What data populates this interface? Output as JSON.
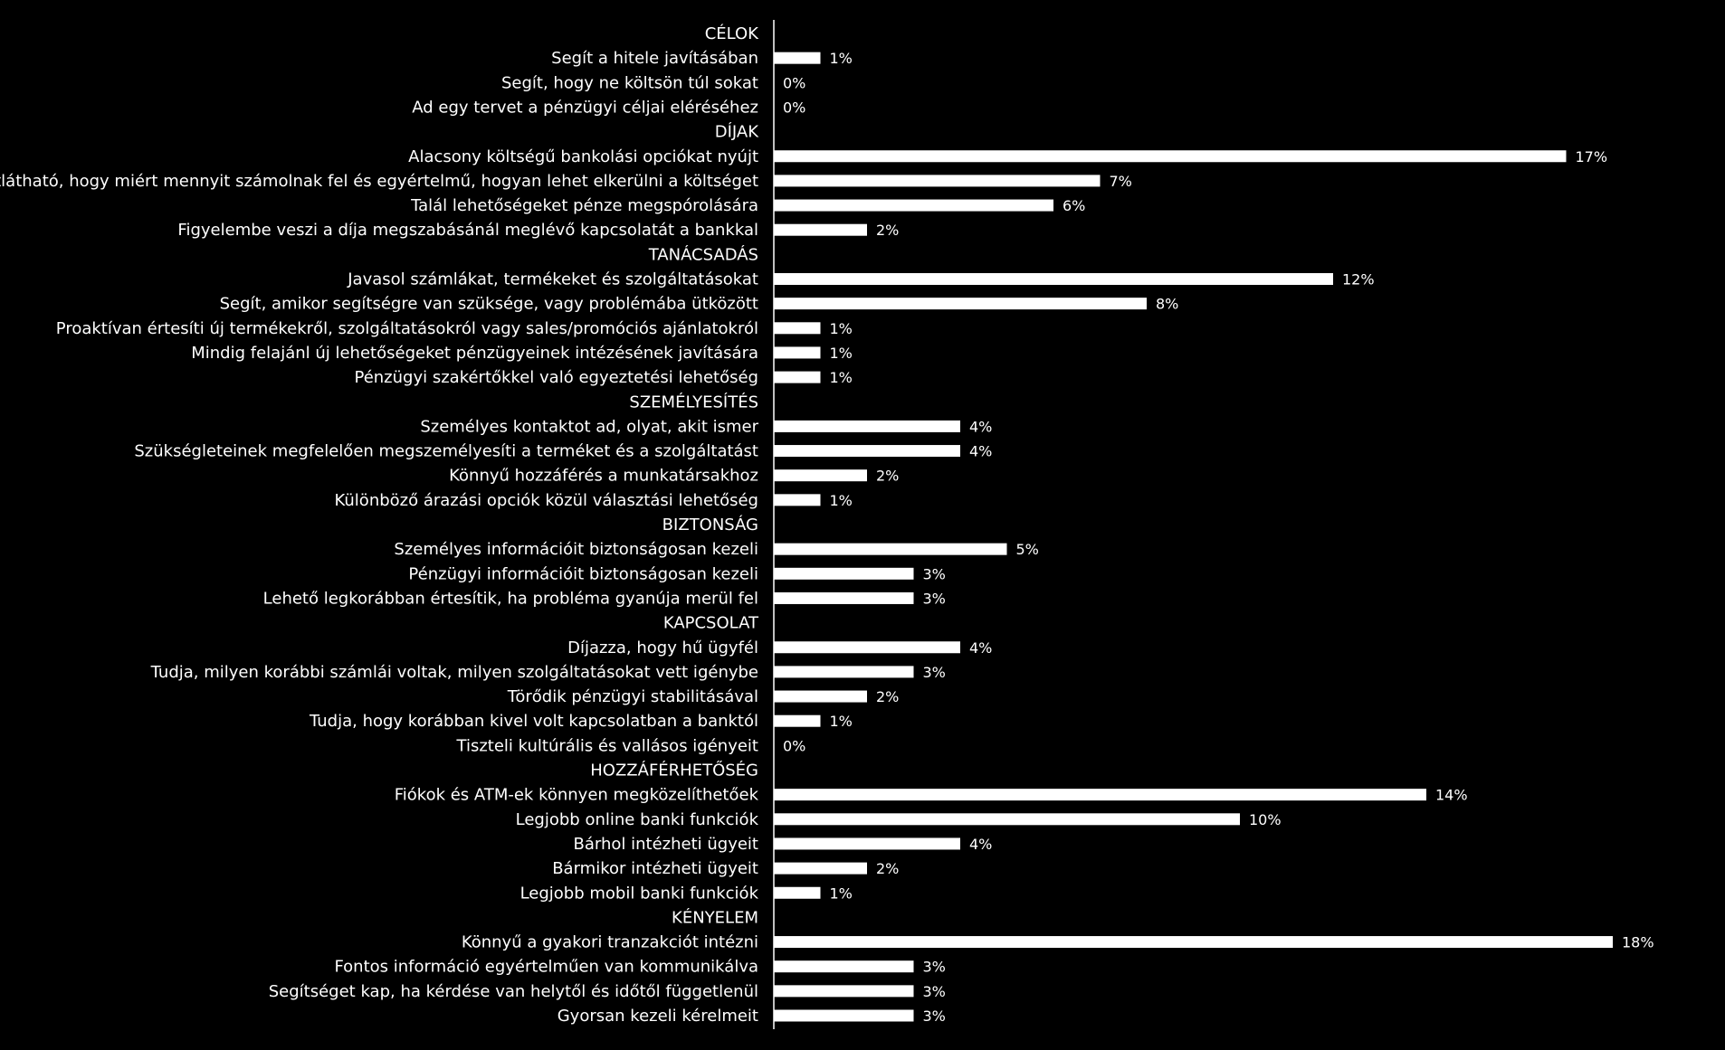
{
  "chart_data": {
    "type": "bar",
    "orientation": "horizontal",
    "title": "",
    "xlabel": "",
    "ylabel": "",
    "xlim": [
      0,
      18
    ],
    "grid": false,
    "value_suffix": "%",
    "colors": {
      "background": "#000000",
      "bar": "#ffffff",
      "text": "#ffffff",
      "axis": "#ffffff"
    },
    "rows": [
      {
        "label": "CÉLOK",
        "header": true
      },
      {
        "label": "Segít a hitele javításában",
        "value": 1,
        "display": "1%"
      },
      {
        "label": "Segít, hogy ne költsön túl sokat",
        "value": 0,
        "display": "0%"
      },
      {
        "label": "Ad egy tervet a pénzügyi céljai eléréséhez",
        "value": 0,
        "display": "0%"
      },
      {
        "label": "DÍJAK",
        "header": true
      },
      {
        "label": "Alacsony költségű bankolási opciókat nyújt",
        "value": 17,
        "display": "17%"
      },
      {
        "label": "Átlátható, hogy miért mennyit számolnak fel és egyértelmű, hogyan lehet elkerülni a költséget",
        "value": 7,
        "display": "7%"
      },
      {
        "label": "Talál lehetőségeket pénze megspórolására",
        "value": 6,
        "display": "6%"
      },
      {
        "label": "Figyelembe veszi a díja megszabásánál meglévő kapcsolatát a bankkal",
        "value": 2,
        "display": "2%"
      },
      {
        "label": "TANÁCSADÁS",
        "header": true
      },
      {
        "label": "Javasol számlákat, termékeket és szolgáltatásokat",
        "value": 12,
        "display": "12%"
      },
      {
        "label": "Segít, amikor segítségre van szüksége, vagy problémába ütközött",
        "value": 8,
        "display": "8%"
      },
      {
        "label": "Proaktívan értesíti új termékekről, szolgáltatásokról vagy sales/promóciós ajánlatokról",
        "value": 1,
        "display": "1%"
      },
      {
        "label": "Mindig felajánl új lehetőségeket pénzügyeinek intézésének javítására",
        "value": 1,
        "display": "1%"
      },
      {
        "label": "Pénzügyi szakértőkkel való egyeztetési lehetőség",
        "value": 1,
        "display": "1%"
      },
      {
        "label": "SZEMÉLYESÍTÉS",
        "header": true
      },
      {
        "label": "Személyes kontaktot ad, olyat, akit ismer",
        "value": 4,
        "display": "4%"
      },
      {
        "label": "Szükségleteinek megfelelően megszemélyesíti a terméket és a szolgáltatást",
        "value": 4,
        "display": "4%"
      },
      {
        "label": "Könnyű hozzáférés a munkatársakhoz",
        "value": 2,
        "display": "2%"
      },
      {
        "label": "Különböző árazási opciók közül választási lehetőség",
        "value": 1,
        "display": "1%"
      },
      {
        "label": "BIZTONSÁG",
        "header": true
      },
      {
        "label": "Személyes információit biztonságosan kezeli",
        "value": 5,
        "display": "5%"
      },
      {
        "label": "Pénzügyi információit biztonságosan kezeli",
        "value": 3,
        "display": "3%"
      },
      {
        "label": "Lehető legkorábban értesítik, ha probléma gyanúja merül fel",
        "value": 3,
        "display": "3%"
      },
      {
        "label": "KAPCSOLAT",
        "header": true
      },
      {
        "label": "Díjazza, hogy hű ügyfél",
        "value": 4,
        "display": "4%"
      },
      {
        "label": "Tudja, milyen korábbi számlái voltak, milyen szolgáltatásokat vett igénybe",
        "value": 3,
        "display": "3%"
      },
      {
        "label": "Törődik pénzügyi stabilitásával",
        "value": 2,
        "display": "2%"
      },
      {
        "label": "Tudja, hogy korábban kivel volt kapcsolatban a banktól",
        "value": 1,
        "display": "1%"
      },
      {
        "label": "Tiszteli kultúrális és vallásos igényeit",
        "value": 0,
        "display": "0%"
      },
      {
        "label": "HOZZÁFÉRHETŐSÉG",
        "header": true
      },
      {
        "label": "Fiókok és ATM-ek könnyen megközelíthetőek",
        "value": 14,
        "display": "14%"
      },
      {
        "label": "Legjobb online banki funkciók",
        "value": 10,
        "display": "10%"
      },
      {
        "label": "Bárhol intézheti ügyeit",
        "value": 4,
        "display": "4%"
      },
      {
        "label": "Bármikor intézheti ügyeit",
        "value": 2,
        "display": "2%"
      },
      {
        "label": "Legjobb mobil banki funkciók",
        "value": 1,
        "display": "1%"
      },
      {
        "label": "KÉNYELEM",
        "header": true
      },
      {
        "label": "Könnyű a gyakori tranzakciót intézni",
        "value": 18,
        "display": "18%"
      },
      {
        "label": "Fontos információ egyértelműen van kommunikálva",
        "value": 3,
        "display": "3%"
      },
      {
        "label": "Segítséget kap, ha kérdése van helytől és időtől függetlenül",
        "value": 3,
        "display": "3%"
      },
      {
        "label": "Gyorsan kezeli kérelmeit",
        "value": 3,
        "display": "3%"
      }
    ]
  }
}
